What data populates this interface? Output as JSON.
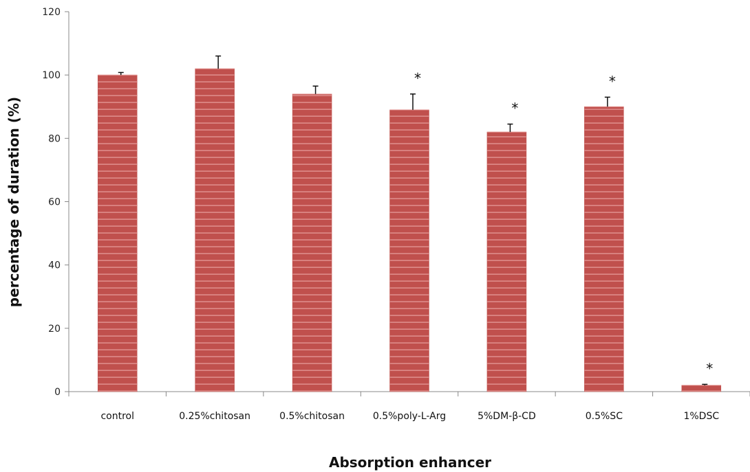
{
  "chart_data": {
    "type": "bar",
    "title": "",
    "xlabel": "Absorption enhancer",
    "ylabel": "percentage of duration (%)",
    "ylim": [
      0,
      120
    ],
    "yticks": [
      0,
      20,
      40,
      60,
      80,
      100,
      120
    ],
    "grid": false,
    "bar_color": "#c0504d",
    "bar_stripe_color": "#e8a09e",
    "categories": [
      "control",
      "0.25%chitosan",
      "0.5%chitosan",
      "0.5%poly-L-Arg",
      "5%DM-β-CD",
      "0.5%SC",
      "1%DSC"
    ],
    "values": [
      100,
      102,
      94,
      89,
      82,
      90,
      2
    ],
    "errors": [
      0.8,
      4,
      2.5,
      5,
      2.5,
      3,
      0.3
    ],
    "significance": [
      "",
      "",
      "",
      "*",
      "*",
      "*",
      "*"
    ]
  }
}
